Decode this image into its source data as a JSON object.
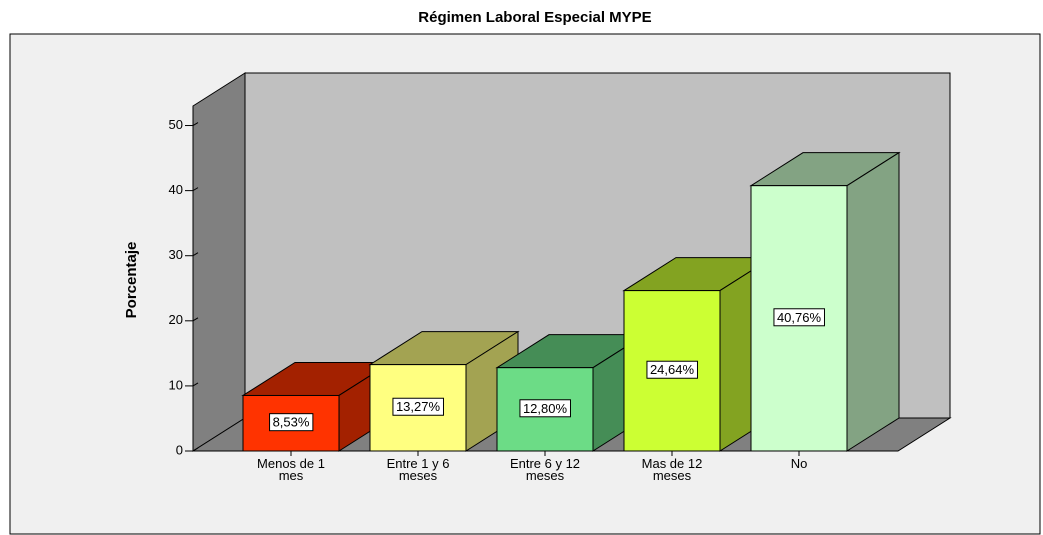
{
  "chart_data": {
    "type": "bar3d",
    "title": "Régimen Laboral Especial MYPE",
    "y_label": "Porcentaje",
    "categories": [
      "Menos de 1 mes",
      "Entre 1 y 6 meses",
      "Entre 6 y 12 meses",
      "Mas de 12 meses",
      "No"
    ],
    "values": [
      8.53,
      13.27,
      12.8,
      24.64,
      40.76
    ],
    "value_labels": [
      "8,53%",
      "13,27%",
      "12,80%",
      "24,64%",
      "40,76%"
    ],
    "colors": [
      "#ff3300",
      "#ffff80",
      "#6cdc86",
      "#ccff33",
      "#ccffcc"
    ],
    "ylim": [
      0,
      53
    ],
    "yticks": [
      0,
      10,
      20,
      30,
      40,
      50
    ]
  }
}
